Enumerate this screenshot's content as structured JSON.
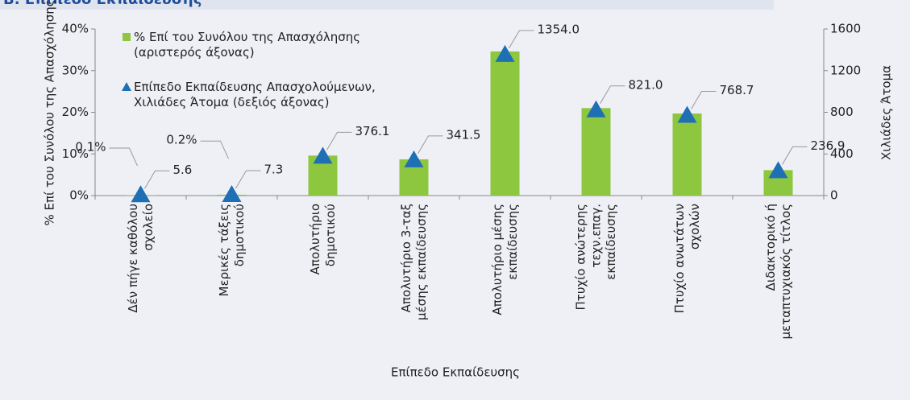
{
  "chart_data": {
    "type": "bar",
    "title": "Β. Επίπεδο Εκπαίδευσης",
    "x_label": "Επίπεδο Εκπαίδευσης",
    "y_label": "% Επί του Συνόλου της Απασχόλησης",
    "y2_label": "Χιλιάδες Άτομα",
    "categories": [
      "Δέν πήγε καθόλου\nσχολείο",
      "Μερικές τάξεις\nδημοτικού",
      "Απολυτήριο\nδημοτικού",
      "Απολυτήριο 3-ταξ\nμέσης εκπαίδευσης",
      "Απολυτήριο μέσης\nεκπαίδευσης",
      "Πτυχίο ανώτερης\nτεχν.επαγ.\nεκπαίδευσης",
      "Πτυχίο ανωτάτων\nσχολών",
      "Διδακτορικό ή\nμεταπτυχιακός τίτλος"
    ],
    "series": [
      {
        "name": "% Επί του Συνόλου της Απασχόλησης\n(αριστερός άξονας)",
        "type": "bar",
        "color": "#8dc63f",
        "values": [
          0.1,
          0.2,
          9.6,
          8.7,
          34.6,
          21.0,
          19.7,
          6.1
        ],
        "value_labels": [
          "0.1%",
          "0.2%",
          "9.6%",
          "8.7%",
          "34.6%",
          "21.0%",
          "19.7%",
          "6.1%"
        ]
      },
      {
        "name": "Επίπεδο Εκπαίδευσης Απασχολούμενων,\nΧιλιάδες Άτομα (δεξιός άξονας)",
        "type": "scatter",
        "marker": "triangle",
        "axis": "y2",
        "color": "#1f6fb5",
        "values": [
          5.6,
          7.3,
          376.1,
          341.5,
          1354.0,
          821.0,
          768.7,
          236.9
        ],
        "value_labels": [
          "5.6",
          "7.3",
          "376.1",
          "341.5",
          "1354.0",
          "821.0",
          "768.7",
          "236.9"
        ]
      }
    ],
    "ylim": [
      0,
      40
    ],
    "yticks": [
      {
        "value": 0,
        "label": "0%"
      },
      {
        "value": 10,
        "label": "10%"
      },
      {
        "value": 20,
        "label": "20%"
      },
      {
        "value": 30,
        "label": "30%"
      },
      {
        "value": 40,
        "label": "40%"
      }
    ],
    "y2lim": [
      0,
      1600
    ],
    "y2ticks": [
      0,
      400,
      800,
      1200,
      1600
    ]
  }
}
